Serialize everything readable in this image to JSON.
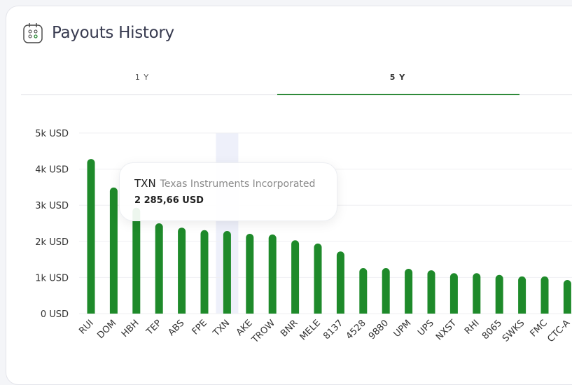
{
  "header": {
    "title": "Payouts History",
    "icon": "calendar-icon"
  },
  "tabs": [
    {
      "label": "1 Y",
      "active": false
    },
    {
      "label": "5 Y",
      "active": true
    }
  ],
  "tooltip": {
    "ticker": "TXN",
    "name": "Texas Instruments Incorporated",
    "value": "2 285,66 USD"
  },
  "colors": {
    "bar": "#1e8a2a",
    "highlight": "#eef0fa",
    "accent": "#2f8a3a"
  },
  "chart_data": {
    "type": "bar",
    "categories": [
      "RUI",
      "DOM",
      "HBH",
      "TEP",
      "ABS",
      "FPE",
      "TXN",
      "AKE",
      "TROW",
      "BNR",
      "MELE",
      "8137",
      "4528",
      "9880",
      "UPM",
      "UPS",
      "NXST",
      "RHI",
      "8065",
      "SWKS",
      "FMC",
      "CTC-A"
    ],
    "values": [
      4280,
      3490,
      2930,
      2500,
      2380,
      2310,
      2285.66,
      2210,
      2190,
      2030,
      1940,
      1720,
      1260,
      1260,
      1240,
      1200,
      1120,
      1120,
      1070,
      1030,
      1030,
      930
    ],
    "yticks": [
      "0 USD",
      "1k USD",
      "2k USD",
      "3k USD",
      "4k USD",
      "5k USD"
    ],
    "ylim": [
      0,
      5000
    ],
    "grid": true,
    "highlighted": "TXN"
  }
}
